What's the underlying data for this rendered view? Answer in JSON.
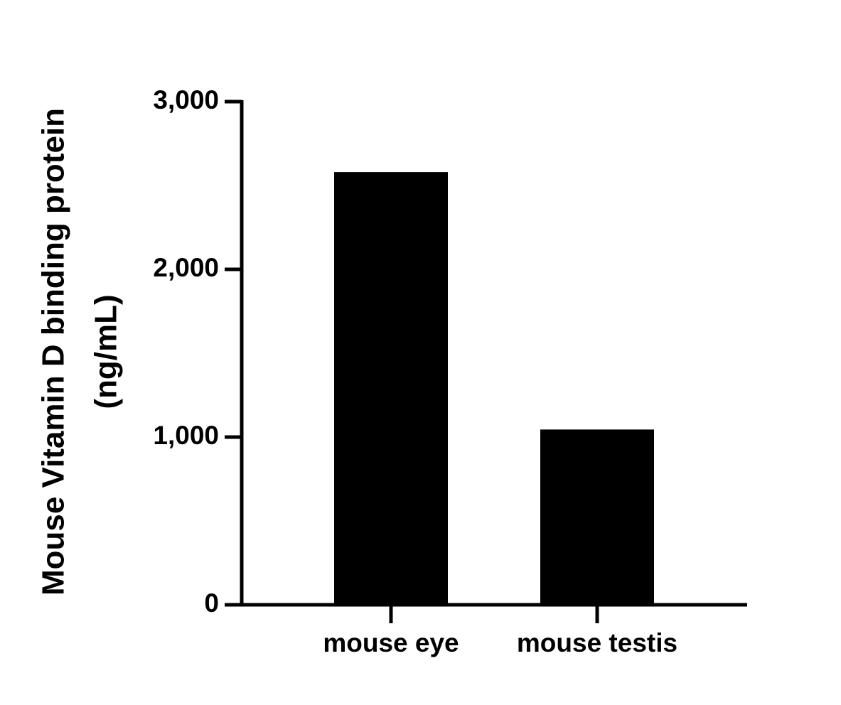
{
  "chart_data": {
    "type": "bar",
    "y_label": [
      "Mouse Vitamin D binding protein",
      "(ng/mL)"
    ],
    "categories": [
      "mouse eye",
      "mouse testis"
    ],
    "values": [
      2580,
      1045
    ],
    "color": "#000000",
    "ylim": [
      0,
      3000
    ],
    "yticks": [
      0,
      {
        "value": 1000,
        "label": "1,000"
      },
      {
        "value": 2000,
        "label": "2,000"
      },
      {
        "value": 3000,
        "label": "3,000"
      }
    ]
  }
}
